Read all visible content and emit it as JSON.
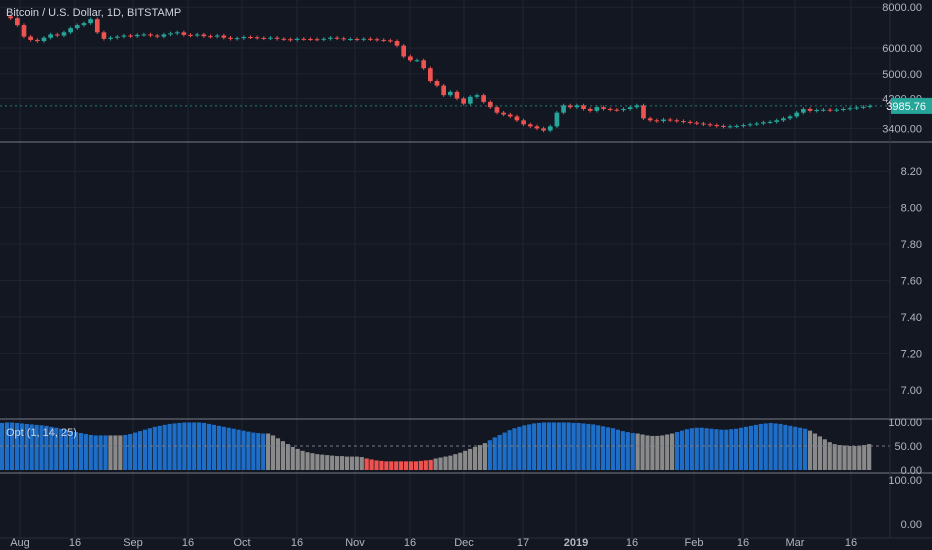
{
  "chart_data": [
    {
      "type": "candlestick",
      "title": "Bitcoin / U.S. Dollar, 1D, BITSTAMP",
      "last_price": "3985.76",
      "y_ticks": [
        "8000.00",
        "6000.00",
        "5000.00",
        "4200.00",
        "3400.00"
      ],
      "ylim": [
        3200,
        8300
      ],
      "log_scale": true,
      "colors": {
        "up": "#26a69a",
        "down": "#ef5350",
        "last_price_bg": "#26a69a"
      },
      "close_series": [
        7500,
        7400,
        7050,
        6500,
        6350,
        6300,
        6450,
        6600,
        6550,
        6700,
        6900,
        7050,
        7150,
        7350,
        6700,
        6400,
        6450,
        6500,
        6550,
        6520,
        6580,
        6600,
        6550,
        6500,
        6600,
        6650,
        6700,
        6580,
        6550,
        6600,
        6520,
        6500,
        6550,
        6450,
        6400,
        6430,
        6480,
        6470,
        6440,
        6420,
        6450,
        6400,
        6380,
        6350,
        6400,
        6390,
        6380,
        6370,
        6400,
        6450,
        6420,
        6380,
        6390,
        6370,
        6400,
        6380,
        6350,
        6330,
        6300,
        6100,
        5650,
        5500,
        5500,
        5200,
        4750,
        4600,
        4300,
        4400,
        4200,
        4050,
        4250,
        4300,
        4100,
        3950,
        3800,
        3750,
        3700,
        3600,
        3500,
        3450,
        3400,
        3350,
        3450,
        3800,
        4000,
        3950,
        4000,
        3900,
        3850,
        3950,
        3900,
        3880,
        3870,
        3900,
        3950,
        4000,
        3650,
        3600,
        3580,
        3620,
        3600,
        3580,
        3560,
        3540,
        3520,
        3500,
        3480,
        3460,
        3440,
        3450,
        3460,
        3480,
        3500,
        3520,
        3550,
        3560,
        3600,
        3650,
        3700,
        3800,
        3900,
        3850,
        3870,
        3880,
        3860,
        3880,
        3900,
        3920,
        3940,
        3960,
        3985
      ]
    },
    {
      "type": "line",
      "y_ticks": [
        "8.20",
        "8.00",
        "7.80",
        "7.60",
        "7.40",
        "7.20",
        "7.00"
      ],
      "ylim": [
        6.9,
        8.3
      ],
      "series": []
    },
    {
      "type": "bar",
      "legend": "Opt (1, 14, 25)",
      "y_ticks": [
        "100.00",
        "50.00",
        "0.00"
      ],
      "ylim": [
        0,
        100
      ],
      "reference_line": 50,
      "colors": {
        "high": "#1e6ec8",
        "mid": "#8a8a8a",
        "low": "#ef5350"
      },
      "segments": [
        {
          "state": "high",
          "values": [
            98,
            99,
            99,
            98,
            97,
            96,
            95,
            94,
            93,
            92,
            90,
            88,
            86,
            84,
            82,
            79,
            77,
            75,
            73,
            72,
            72,
            72
          ]
        },
        {
          "state": "mid",
          "values": [
            72,
            72,
            72
          ]
        },
        {
          "state": "high",
          "values": [
            73,
            75,
            78,
            81,
            84,
            87,
            90,
            92,
            94,
            96,
            97,
            98,
            99,
            99,
            99,
            99,
            98,
            96,
            94,
            92,
            90,
            88,
            86,
            84,
            82,
            80,
            78,
            77,
            76
          ]
        },
        {
          "state": "mid",
          "values": [
            76,
            72,
            66,
            60,
            54,
            48,
            44,
            40,
            37,
            35,
            33,
            32,
            31,
            30,
            29,
            29,
            28,
            28,
            28,
            27
          ]
        },
        {
          "state": "low",
          "values": [
            24,
            22,
            20,
            19,
            18,
            18,
            18,
            18,
            18,
            18,
            18,
            19,
            20,
            21
          ]
        },
        {
          "state": "mid",
          "values": [
            24,
            26,
            28,
            30,
            33,
            36,
            40,
            44,
            48,
            52,
            56
          ]
        },
        {
          "state": "high",
          "values": [
            62,
            68,
            73,
            78,
            83,
            87,
            90,
            93,
            95,
            97,
            98,
            99,
            99,
            99,
            99,
            99,
            99,
            98,
            98,
            97,
            96,
            95,
            93,
            91,
            89,
            87,
            84,
            81,
            79,
            77
          ]
        },
        {
          "state": "mid",
          "values": [
            76,
            74,
            72,
            71,
            71,
            72,
            74,
            76
          ]
        },
        {
          "state": "high",
          "values": [
            79,
            82,
            85,
            87,
            88,
            88,
            87,
            86,
            85,
            84,
            84,
            85,
            86,
            88,
            90,
            92,
            94,
            96,
            97,
            98,
            97,
            96,
            94,
            92,
            90,
            88,
            86
          ]
        },
        {
          "state": "mid",
          "values": [
            82,
            76,
            70,
            64,
            58,
            54,
            52,
            51,
            50,
            50,
            51,
            52,
            54
          ]
        }
      ]
    },
    {
      "type": "bar",
      "y_ticks": [
        "100.00",
        "0.00"
      ],
      "ylim": [
        0,
        100
      ],
      "series": []
    }
  ],
  "x_axis": {
    "labels": [
      "Aug",
      "16",
      "Sep",
      "16",
      "Oct",
      "16",
      "Nov",
      "16",
      "Dec",
      "17",
      "2019",
      "16",
      "Feb",
      "16",
      "Mar",
      "16"
    ]
  }
}
